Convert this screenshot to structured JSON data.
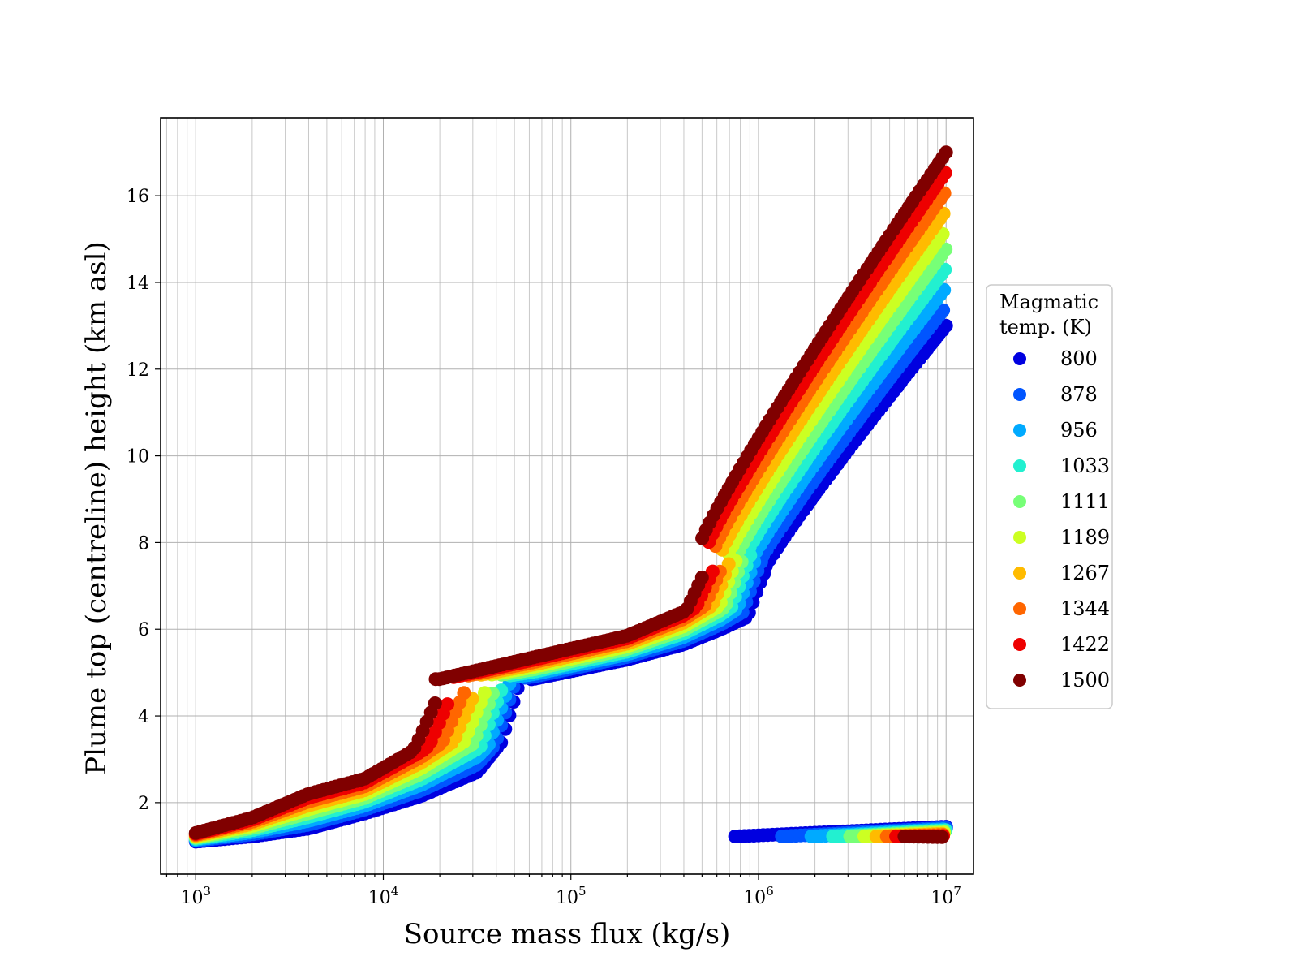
{
  "chart_data": {
    "type": "scatter",
    "xlabel": "Source mass flux (kg/s)",
    "ylabel": "Plume top (centreline) height (km asl)",
    "xscale": "log",
    "xlim": [
      650,
      14000000
    ],
    "ylim": [
      0.35,
      17.8
    ],
    "x_ticks": [
      {
        "mant": "10",
        "exp": "3",
        "value": 1000
      },
      {
        "mant": "10",
        "exp": "4",
        "value": 10000
      },
      {
        "mant": "10",
        "exp": "5",
        "value": 100000
      },
      {
        "mant": "10",
        "exp": "6",
        "value": 1000000
      },
      {
        "mant": "10",
        "exp": "7",
        "value": 10000000
      }
    ],
    "y_ticks": [
      {
        "label": "2",
        "value": 2
      },
      {
        "label": "4",
        "value": 4
      },
      {
        "label": "6",
        "value": 6
      },
      {
        "label": "8",
        "value": 8
      },
      {
        "label": "10",
        "value": 10
      },
      {
        "label": "12",
        "value": 12
      },
      {
        "label": "14",
        "value": 14
      },
      {
        "label": "16",
        "value": 16
      }
    ],
    "grid": true,
    "legend_title": [
      "Magmatic",
      "temp. (K)"
    ],
    "legend_position": "right",
    "series": [
      {
        "name": "800",
        "color": "#0000e0",
        "shift": 0.0,
        "low_regime_from": 750000,
        "main_break": {
          "upper_start": 65000,
          "lower_end": 58000,
          "low_top": 4.3,
          "up_bottom": 4.6
        }
      },
      {
        "name": "878",
        "color": "#0055ff",
        "shift": 0.111
      },
      {
        "name": "956",
        "color": "#00aaff",
        "shift": 0.222
      },
      {
        "name": "1033",
        "color": "#22f0d0",
        "shift": 0.333
      },
      {
        "name": "1111",
        "color": "#77ff77",
        "shift": 0.444
      },
      {
        "name": "1189",
        "color": "#ccff22",
        "shift": 0.556
      },
      {
        "name": "1267",
        "color": "#ffbb00",
        "shift": 0.667
      },
      {
        "name": "1344",
        "color": "#ff6600",
        "shift": 0.778
      },
      {
        "name": "1422",
        "color": "#ee0000",
        "shift": 0.889
      },
      {
        "name": "1500",
        "color": "#800000",
        "shift": 1.0
      }
    ],
    "curve": {
      "segment1": {
        "x_start": 1000,
        "x_end_by_shift": [
          56000,
          19000
        ],
        "log10x": [
          3.0,
          3.3,
          3.6,
          3.9,
          4.2,
          4.5,
          4.8
        ],
        "y_low": [
          1.1,
          1.22,
          1.4,
          1.75,
          2.15,
          2.7,
          4.3
        ],
        "y_high": [
          1.3,
          1.65,
          2.2,
          2.55,
          3.3,
          4.3,
          4.5
        ]
      },
      "segment2": {
        "x_end_by_shift": [
          1100000,
          520000
        ],
        "log10x": [
          4.3,
          4.8,
          5.3,
          5.6,
          5.8,
          6.0
        ],
        "y_low": [
          4.6,
          4.85,
          5.3,
          5.65,
          6.0,
          6.4
        ],
        "y_high": [
          4.85,
          5.35,
          5.85,
          6.4,
          7.0,
          8.2
        ]
      },
      "segment3": {
        "x_end": 10000000,
        "log10x_start_by_shift": [
          6.02,
          5.7
        ],
        "y_start_by_shift": [
          7.3,
          8.1
        ],
        "y_end_by_shift": [
          13.0,
          17.0
        ]
      },
      "low_regime": {
        "x_end": 10000000,
        "y_range": [
          1.15,
          1.6
        ]
      }
    }
  }
}
